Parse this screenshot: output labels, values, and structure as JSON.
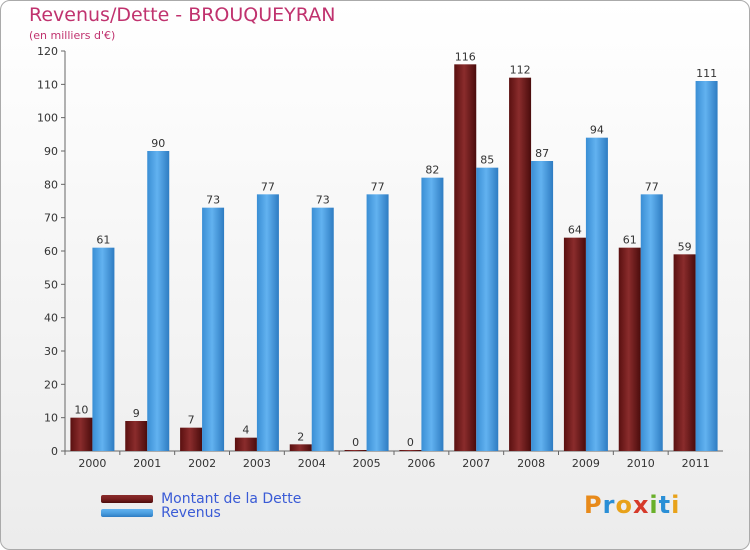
{
  "colors": {
    "dette": "#7a1f1f",
    "revenus": "#4b9fe0",
    "title": "#c0326e",
    "legend_text": "#3a5bd6"
  },
  "header": {
    "title": "Revenus/Dette - BROUQUEYRAN",
    "subtitle": "(en milliers d'€)"
  },
  "legend": {
    "dette_label": "Montant de la Dette",
    "revenus_label": "Revenus"
  },
  "logo": {
    "letters": [
      "P",
      "r",
      "o",
      "x",
      "i",
      "t",
      "i"
    ],
    "letter_colors": [
      "#e88a1a",
      "#2a8fd6",
      "#e8a21a",
      "#d63a2a",
      "#6ab02a",
      "#2a8fd6",
      "#e8a21a"
    ]
  },
  "chart_data": {
    "type": "bar",
    "title": "Revenus/Dette - BROUQUEYRAN",
    "subtitle": "(en milliers d'€)",
    "xlabel": "",
    "ylabel": "",
    "ylim": [
      0,
      120
    ],
    "yticks": [
      0,
      10,
      20,
      30,
      40,
      50,
      60,
      70,
      80,
      90,
      100,
      110,
      120
    ],
    "grid": false,
    "legend_position": "bottom-left",
    "categories": [
      "2000",
      "2001",
      "2002",
      "2003",
      "2004",
      "2005",
      "2006",
      "2007",
      "2008",
      "2009",
      "2010",
      "2011"
    ],
    "series": [
      {
        "name": "Montant de la Dette",
        "values": [
          10,
          9,
          7,
          4,
          2,
          0,
          0,
          116,
          112,
          64,
          61,
          59
        ]
      },
      {
        "name": "Revenus",
        "values": [
          61,
          90,
          73,
          77,
          73,
          77,
          82,
          85,
          87,
          94,
          77,
          111
        ]
      }
    ]
  }
}
